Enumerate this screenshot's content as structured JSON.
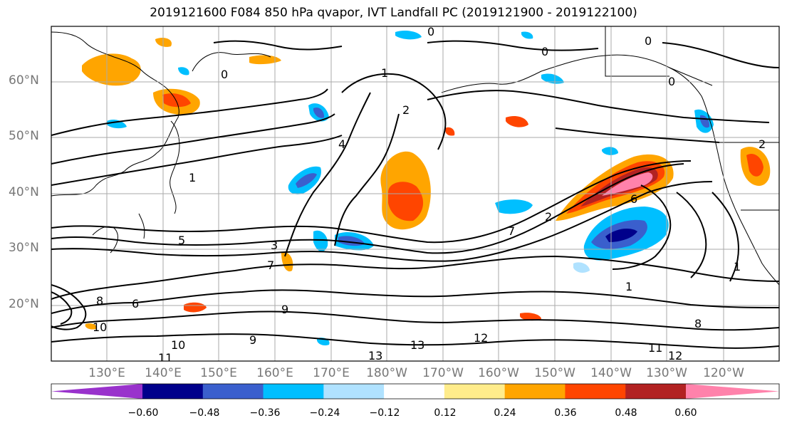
{
  "title": "2019121600 F084 850 hPa qvapor, IVT Landfall PC (2019121900 - 2019122100)",
  "lat_labels": [
    "60°N",
    "50°N",
    "40°N",
    "30°N",
    "20°N"
  ],
  "lon_labels": [
    "130°E",
    "140°E",
    "150°E",
    "160°E",
    "170°E",
    "180°W",
    "170°W",
    "160°W",
    "150°W",
    "140°W",
    "130°W",
    "120°W"
  ],
  "colorbar": {
    "colors": [
      "#9932cc",
      "#00008b",
      "#3a5fcd",
      "#00bfff",
      "#b0e2ff",
      "#ffffff",
      "#ffec8b",
      "#ffa500",
      "#ff4500",
      "#b22222",
      "#ff82ab"
    ],
    "ticks": [
      "−0.60",
      "−0.48",
      "−0.36",
      "−0.24",
      "−0.12",
      "0.12",
      "0.24",
      "0.36",
      "0.48",
      "0.60"
    ]
  },
  "contour_labels": [
    "0",
    "0",
    "0",
    "0",
    "0",
    "1",
    "1",
    "1",
    "2",
    "2",
    "2",
    "3",
    "4",
    "5",
    "6",
    "6",
    "7",
    "8",
    "9",
    "9",
    "10",
    "10",
    "11",
    "11",
    "12",
    "12",
    "13",
    "13",
    "1",
    "7",
    "8"
  ]
}
